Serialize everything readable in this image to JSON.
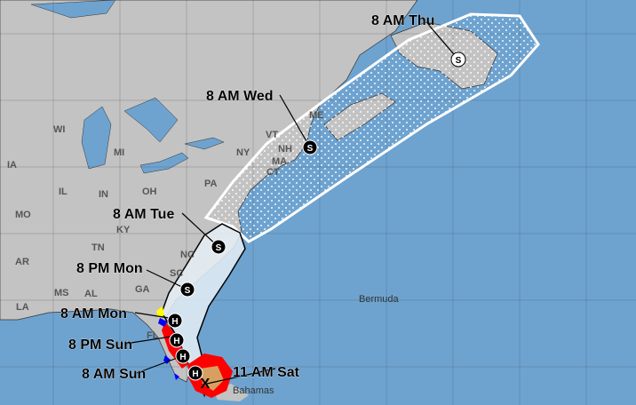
{
  "colors": {
    "ocean": "#6ea3d0",
    "land": "#c3c3c3",
    "cone_fill": "#e6eef6",
    "hurricane_warning": "#ff0000",
    "tropical_storm_warning": "#0000ff",
    "tropical_storm_watch": "#ffff00",
    "hurricane_watch": "#d8a060"
  },
  "states": [
    "WI",
    "MI",
    "IA",
    "IL",
    "IN",
    "OH",
    "PA",
    "NY",
    "VT",
    "NH",
    "MA",
    "CT",
    "ME",
    "MO",
    "KY",
    "TN",
    "AR",
    "NC",
    "SC",
    "GA",
    "AL",
    "MS",
    "LA",
    "FL"
  ],
  "places": {
    "bermuda": "Bermuda",
    "bahamas": "Bahamas"
  },
  "track": [
    {
      "time": "11 AM Sat",
      "type": "X",
      "symbol": "current-position"
    },
    {
      "time": "8 AM Sun",
      "type": "H",
      "symbol": "hurricane"
    },
    {
      "time": "8 PM Sun",
      "type": "H",
      "symbol": "hurricane"
    },
    {
      "time": "8 AM Mon",
      "type": "H",
      "symbol": "hurricane"
    },
    {
      "time": "",
      "type": "H",
      "symbol": "hurricane"
    },
    {
      "time": "8 PM Mon",
      "type": "S",
      "symbol": "tropical-storm"
    },
    {
      "time": "8 AM Tue",
      "type": "S",
      "symbol": "tropical-storm"
    },
    {
      "time": "8 AM Wed",
      "type": "S",
      "symbol": "tropical-storm"
    },
    {
      "time": "8 AM Thu",
      "type": "S",
      "symbol": "tropical-storm"
    }
  ]
}
